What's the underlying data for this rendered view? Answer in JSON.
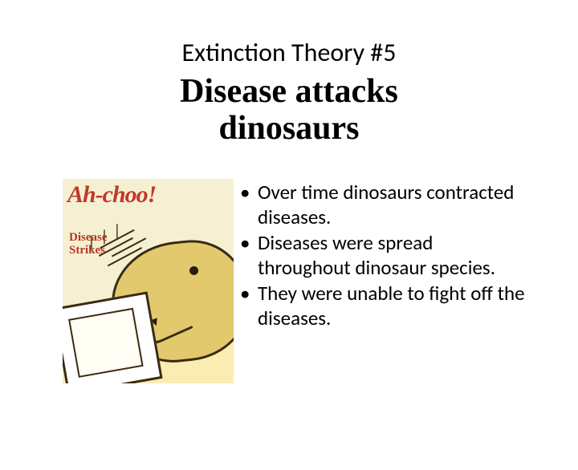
{
  "heading": "Extinction Theory #5",
  "title_line1": "Disease attacks",
  "title_line2": "dinosaurs",
  "illustration": {
    "headline": "Ah-choo!",
    "subhead_line1": "Disease",
    "subhead_line2": "Strikes",
    "bg_color": "#f6f0d3",
    "ground_color": "#f9edb1",
    "headline_color": "#c03a2a",
    "subhead_color": "#b53826",
    "dino_color": "#e2c96e",
    "outline_color": "#3b2a12"
  },
  "bullets": [
    "Over time dinosaurs contracted diseases.",
    "Diseases were spread throughout dinosaur species.",
    "They were unable to fight off the diseases."
  ]
}
